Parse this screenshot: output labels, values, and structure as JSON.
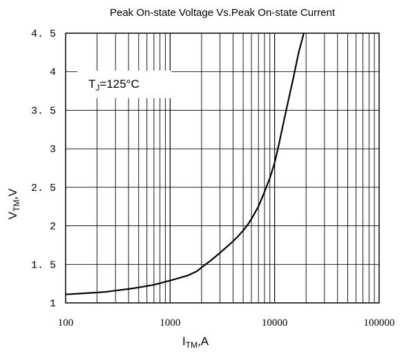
{
  "chart_data": {
    "type": "line",
    "title": "Peak On-state Voltage Vs.Peak On-state Current",
    "xlabel": {
      "main": "I",
      "sub": "TM",
      "rest": ",A"
    },
    "ylabel": {
      "main": "V",
      "sub": "TM",
      "rest": ",V"
    },
    "x_scale": "log",
    "xlim": [
      100,
      100000
    ],
    "ylim": [
      1,
      4.5
    ],
    "grid": true,
    "x_ticks": [
      {
        "value": 100,
        "label": "100"
      },
      {
        "value": 1000,
        "label": "1000"
      },
      {
        "value": 10000,
        "label": "10000"
      },
      {
        "value": 100000,
        "label": "100000"
      }
    ],
    "y_ticks": [
      {
        "value": 1,
        "label": "1"
      },
      {
        "value": 1.5,
        "label": "1. 5"
      },
      {
        "value": 2,
        "label": "2"
      },
      {
        "value": 2.5,
        "label": "2. 5"
      },
      {
        "value": 3,
        "label": "3"
      },
      {
        "value": 3.5,
        "label": "3. 5"
      },
      {
        "value": 4,
        "label": "4"
      },
      {
        "value": 4.5,
        "label": "4. 5"
      }
    ],
    "annotation": {
      "main": "T",
      "sub": "J",
      "rest": "=125°C"
    },
    "series": [
      {
        "x": [
          100,
          150,
          200,
          250,
          300,
          400,
          500,
          700,
          1000,
          1200,
          1500,
          1800,
          2000,
          2500,
          3000,
          3500,
          4000,
          4500,
          5000,
          5500,
          6000,
          7000,
          8000,
          9000,
          10000,
          11000,
          12000,
          13000,
          15000,
          17000,
          19000
        ],
        "y": [
          1.11,
          1.125,
          1.135,
          1.145,
          1.16,
          1.18,
          1.2,
          1.235,
          1.29,
          1.32,
          1.36,
          1.41,
          1.46,
          1.56,
          1.65,
          1.73,
          1.8,
          1.87,
          1.94,
          2.01,
          2.09,
          2.25,
          2.44,
          2.62,
          2.82,
          3.06,
          3.3,
          3.52,
          3.9,
          4.25,
          4.5
        ]
      }
    ]
  }
}
